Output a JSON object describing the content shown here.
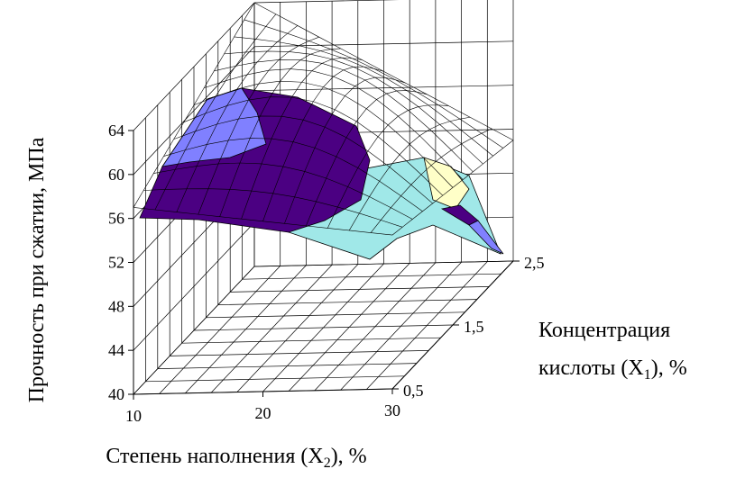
{
  "chart_data": {
    "type": "surface",
    "title": "",
    "zlabel": "Прочность при сжатии, МПа",
    "xlabel_text": "Степень наполнения (X",
    "xlabel_sub": "2",
    "xlabel_tail": "), %",
    "ylabel_line1": "Концентрация",
    "ylabel_line2_text": "кислоты (X",
    "ylabel_line2_sub": "1",
    "ylabel_line2_tail": "), %",
    "x_ticks": [
      "10",
      "20",
      "30"
    ],
    "y_ticks": [
      "0,5",
      "1,5",
      "2,5"
    ],
    "z_ticks": [
      "40",
      "44",
      "48",
      "52",
      "56",
      "60",
      "64"
    ],
    "xlim": [
      10,
      30
    ],
    "ylim": [
      0.5,
      2.5
    ],
    "zlim": [
      40,
      64
    ],
    "grid": true,
    "band_colors": [
      "#4b0082",
      "#8080ff",
      "#7fdede",
      "#ffffc8",
      "#a0e8e8"
    ],
    "surface_z_corners": {
      "x10_y0.5": 57,
      "x30_y0.5": 54,
      "x10_y2.5": 64,
      "x30_y2.5": 51
    }
  }
}
